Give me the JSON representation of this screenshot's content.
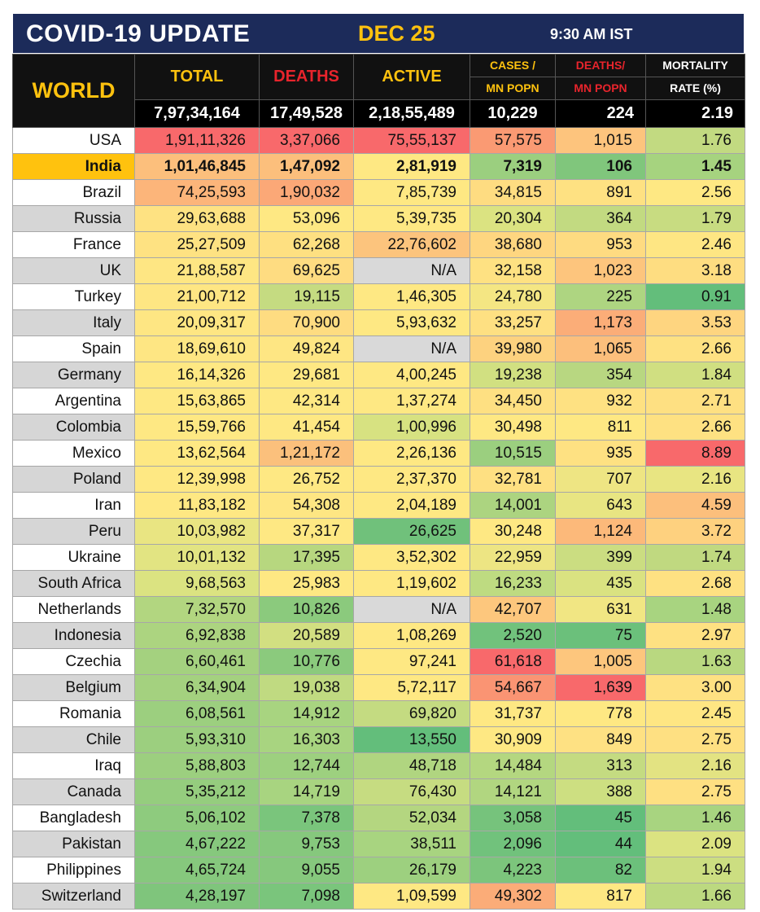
{
  "header": {
    "title": "COVID-19 UPDATE",
    "date": "DEC 25",
    "time": "9:30 AM IST"
  },
  "columns": {
    "region": "WORLD",
    "total": "TOTAL",
    "deaths": "DEATHS",
    "active": "ACTIVE",
    "cases_mn_1": "CASES /",
    "cases_mn_2": "MN POPN",
    "deaths_mn_1": "DEATHS/",
    "deaths_mn_2": "MN POPN",
    "mortality_1": "MORTALITY",
    "mortality_2": "RATE (%)"
  },
  "world_totals": {
    "total": "7,97,34,164",
    "deaths": "17,49,528",
    "active": "2,18,55,489",
    "cases_mn": "10,229",
    "deaths_mn": "224",
    "mortality": "2.19"
  },
  "colors": {
    "title_bg": "#1c2b5a",
    "accent_yellow": "#ffc20e",
    "accent_red": "#e8242c",
    "highlight_row": "#ffc20e"
  },
  "countries": [
    {
      "name": "USA",
      "total": "1,91,11,326",
      "deaths": "3,37,066",
      "active": "75,55,137",
      "cases_mn": "57,575",
      "deaths_mn": "1,015",
      "mortality": "1.76",
      "c": [
        "#f8696b",
        "#f8696b",
        "#f8696b",
        "#fa9a73",
        "#fdc47d",
        "#c2da81"
      ]
    },
    {
      "name": "India",
      "total": "1,01,46,845",
      "deaths": "1,47,092",
      "active": "2,81,919",
      "cases_mn": "7,319",
      "deaths_mn": "106",
      "mortality": "1.45",
      "c": [
        "#fcbf7c",
        "#fcbf7c",
        "#fee883",
        "#9bcf7f",
        "#80c67c",
        "#a6d37f"
      ]
    },
    {
      "name": "Brazil",
      "total": "74,25,593",
      "deaths": "1,90,032",
      "active": "7,85,739",
      "cases_mn": "34,815",
      "deaths_mn": "891",
      "mortality": "2.56",
      "c": [
        "#fcb57a",
        "#fba877",
        "#fee883",
        "#fedc81",
        "#fee182",
        "#fee883"
      ]
    },
    {
      "name": "Russia",
      "total": "29,63,688",
      "deaths": "53,096",
      "active": "5,39,735",
      "cases_mn": "20,304",
      "deaths_mn": "364",
      "mortality": "1.79",
      "c": [
        "#fee282",
        "#fee883",
        "#fee883",
        "#dbe381",
        "#c2da81",
        "#c8dc81"
      ]
    },
    {
      "name": "France",
      "total": "25,27,509",
      "deaths": "62,268",
      "active": "22,76,602",
      "cases_mn": "38,680",
      "deaths_mn": "953",
      "mortality": "2.46",
      "c": [
        "#fee282",
        "#fee081",
        "#fcc47d",
        "#fed680",
        "#fedb81",
        "#fee683"
      ]
    },
    {
      "name": "UK",
      "total": "21,88,587",
      "deaths": "69,625",
      "active": "N/A",
      "cases_mn": "32,158",
      "deaths_mn": "1,023",
      "mortality": "3.18",
      "c": [
        "#fee683",
        "#fedc81",
        "#d9d9d9",
        "#fee182",
        "#fdc57d",
        "#fedd81"
      ]
    },
    {
      "name": "Turkey",
      "total": "21,00,712",
      "deaths": "19,115",
      "active": "1,46,305",
      "cases_mn": "24,780",
      "deaths_mn": "225",
      "mortality": "0.91",
      "c": [
        "#fee683",
        "#c5db81",
        "#fee883",
        "#f4e683",
        "#aed581",
        "#63be7b"
      ]
    },
    {
      "name": "Italy",
      "total": "20,09,317",
      "deaths": "70,900",
      "active": "5,93,632",
      "cases_mn": "33,257",
      "deaths_mn": "1,173",
      "mortality": "3.53",
      "c": [
        "#fee683",
        "#fedc81",
        "#fee883",
        "#fee082",
        "#fbad78",
        "#fed580"
      ]
    },
    {
      "name": "Spain",
      "total": "18,69,610",
      "deaths": "49,824",
      "active": "N/A",
      "cases_mn": "39,980",
      "deaths_mn": "1,065",
      "mortality": "2.66",
      "c": [
        "#fee683",
        "#fee683",
        "#d9d9d9",
        "#fdd27f",
        "#fcbf7c",
        "#fee182"
      ]
    },
    {
      "name": "Germany",
      "total": "16,14,326",
      "deaths": "29,681",
      "active": "4,00,245",
      "cases_mn": "19,238",
      "deaths_mn": "354",
      "mortality": "1.84",
      "c": [
        "#fee883",
        "#fee883",
        "#fee883",
        "#d1e081",
        "#b8d781",
        "#d0df81"
      ]
    },
    {
      "name": "Argentina",
      "total": "15,63,865",
      "deaths": "42,314",
      "active": "1,37,274",
      "cases_mn": "34,450",
      "deaths_mn": "932",
      "mortality": "2.71",
      "c": [
        "#fee883",
        "#fee883",
        "#fee883",
        "#fee082",
        "#fee182",
        "#fee082"
      ]
    },
    {
      "name": "Colombia",
      "total": "15,59,766",
      "deaths": "41,454",
      "active": "1,00,996",
      "cases_mn": "30,498",
      "deaths_mn": "811",
      "mortality": "2.66",
      "c": [
        "#fee883",
        "#fee883",
        "#d7e281",
        "#fee883",
        "#fee883",
        "#fee182"
      ]
    },
    {
      "name": "Mexico",
      "total": "13,62,564",
      "deaths": "1,21,172",
      "active": "2,26,136",
      "cases_mn": "10,515",
      "deaths_mn": "935",
      "mortality": "8.89",
      "c": [
        "#fee883",
        "#fbc07c",
        "#fee883",
        "#9bcf7f",
        "#fee182",
        "#f8696b"
      ]
    },
    {
      "name": "Poland",
      "total": "12,39,998",
      "deaths": "26,752",
      "active": "2,37,370",
      "cases_mn": "32,781",
      "deaths_mn": "707",
      "mortality": "2.16",
      "c": [
        "#fee883",
        "#fee883",
        "#fee883",
        "#fee082",
        "#eee583",
        "#e8e582"
      ]
    },
    {
      "name": "Iran",
      "total": "11,83,182",
      "deaths": "54,308",
      "active": "2,04,189",
      "cases_mn": "14,001",
      "deaths_mn": "643",
      "mortality": "4.59",
      "c": [
        "#fee883",
        "#fee683",
        "#fee883",
        "#acd480",
        "#e8e582",
        "#fcbf7c"
      ]
    },
    {
      "name": "Peru",
      "total": "10,03,982",
      "deaths": "37,317",
      "active": "26,625",
      "cases_mn": "30,248",
      "deaths_mn": "1,124",
      "mortality": "3.72",
      "c": [
        "#e9e582",
        "#fee883",
        "#70c17b",
        "#fee883",
        "#fcb97a",
        "#fed17f"
      ]
    },
    {
      "name": "Ukraine",
      "total": "10,01,132",
      "deaths": "17,395",
      "active": "3,52,302",
      "cases_mn": "22,959",
      "deaths_mn": "399",
      "mortality": "1.74",
      "c": [
        "#e2e482",
        "#b7d77f",
        "#fee883",
        "#ede583",
        "#cbdd81",
        "#c0d980"
      ]
    },
    {
      "name": "South Africa",
      "total": "9,68,563",
      "deaths": "25,983",
      "active": "1,19,602",
      "cases_mn": "16,233",
      "deaths_mn": "435",
      "mortality": "2.68",
      "c": [
        "#dbe381",
        "#fee883",
        "#fee883",
        "#bedb81",
        "#dae281",
        "#fee182"
      ]
    },
    {
      "name": "Netherlands",
      "total": "7,32,570",
      "deaths": "10,826",
      "active": "N/A",
      "cases_mn": "42,707",
      "deaths_mn": "631",
      "mortality": "1.48",
      "c": [
        "#b2d680",
        "#8bca7d",
        "#d9d9d9",
        "#fdc77d",
        "#f1e683",
        "#a8d480"
      ]
    },
    {
      "name": "Indonesia",
      "total": "6,92,838",
      "deaths": "20,589",
      "active": "1,08,269",
      "cases_mn": "2,520",
      "deaths_mn": "75",
      "mortality": "2.97",
      "c": [
        "#acd480",
        "#d2df81",
        "#fee883",
        "#71c27c",
        "#6bc07b",
        "#fee182"
      ]
    },
    {
      "name": "Czechia",
      "total": "6,60,461",
      "deaths": "10,776",
      "active": "97,241",
      "cases_mn": "61,618",
      "deaths_mn": "1,005",
      "mortality": "1.63",
      "c": [
        "#a4d17f",
        "#8bca7d",
        "#fee883",
        "#f8696b",
        "#fdc67d",
        "#b9d880"
      ]
    },
    {
      "name": "Belgium",
      "total": "6,34,904",
      "deaths": "19,038",
      "active": "5,72,117",
      "cases_mn": "54,667",
      "deaths_mn": "1,639",
      "mortality": "3.00",
      "c": [
        "#a4d17f",
        "#c0da81",
        "#fee883",
        "#fa9473",
        "#f8696b",
        "#fee182"
      ]
    },
    {
      "name": "Romania",
      "total": "6,08,561",
      "deaths": "14,912",
      "active": "69,820",
      "cases_mn": "31,737",
      "deaths_mn": "778",
      "mortality": "2.45",
      "c": [
        "#9ccf7f",
        "#a8d480",
        "#c4db81",
        "#fee883",
        "#fee883",
        "#fee683"
      ]
    },
    {
      "name": "Chile",
      "total": "5,93,310",
      "deaths": "16,303",
      "active": "13,550",
      "cases_mn": "30,909",
      "deaths_mn": "849",
      "mortality": "2.75",
      "c": [
        "#9ccf7f",
        "#a8d480",
        "#63be7b",
        "#fee883",
        "#fee183",
        "#fee082"
      ]
    },
    {
      "name": "Iraq",
      "total": "5,88,803",
      "deaths": "12,744",
      "active": "48,718",
      "cases_mn": "14,484",
      "deaths_mn": "313",
      "mortality": "2.16",
      "c": [
        "#9ccf7f",
        "#9dd07f",
        "#b0d580",
        "#b4d780",
        "#c4db81",
        "#e3e382"
      ]
    },
    {
      "name": "Canada",
      "total": "5,35,212",
      "deaths": "14,719",
      "active": "76,430",
      "cases_mn": "14,121",
      "deaths_mn": "388",
      "mortality": "2.75",
      "c": [
        "#95cd7e",
        "#a8d480",
        "#c6dc81",
        "#b1d680",
        "#cddf81",
        "#fee082"
      ]
    },
    {
      "name": "Bangladesh",
      "total": "5,06,102",
      "deaths": "7,378",
      "active": "52,034",
      "cases_mn": "3,058",
      "deaths_mn": "45",
      "mortality": "1.46",
      "c": [
        "#8ecb7e",
        "#7ac57c",
        "#b4d680",
        "#76c37c",
        "#63be7b",
        "#a8d480"
      ]
    },
    {
      "name": "Pakistan",
      "total": "4,67,222",
      "deaths": "9,753",
      "active": "38,511",
      "cases_mn": "2,096",
      "deaths_mn": "44",
      "mortality": "2.09",
      "c": [
        "#86c87d",
        "#86c87d",
        "#a8d480",
        "#71c27c",
        "#63be7b",
        "#dbe381"
      ]
    },
    {
      "name": "Philippines",
      "total": "4,65,724",
      "deaths": "9,055",
      "active": "26,179",
      "cases_mn": "4,223",
      "deaths_mn": "82",
      "mortality": "1.94",
      "c": [
        "#86c87d",
        "#86c87d",
        "#9dd07f",
        "#7cc57c",
        "#6cc07b",
        "#ccde81"
      ]
    },
    {
      "name": "Switzerland",
      "total": "4,28,197",
      "deaths": "7,098",
      "active": "1,09,599",
      "cases_mn": "49,302",
      "deaths_mn": "817",
      "mortality": "1.66",
      "c": [
        "#7fc57c",
        "#7ac57c",
        "#fee883",
        "#fbac78",
        "#fee883",
        "#bcd980"
      ]
    }
  ]
}
